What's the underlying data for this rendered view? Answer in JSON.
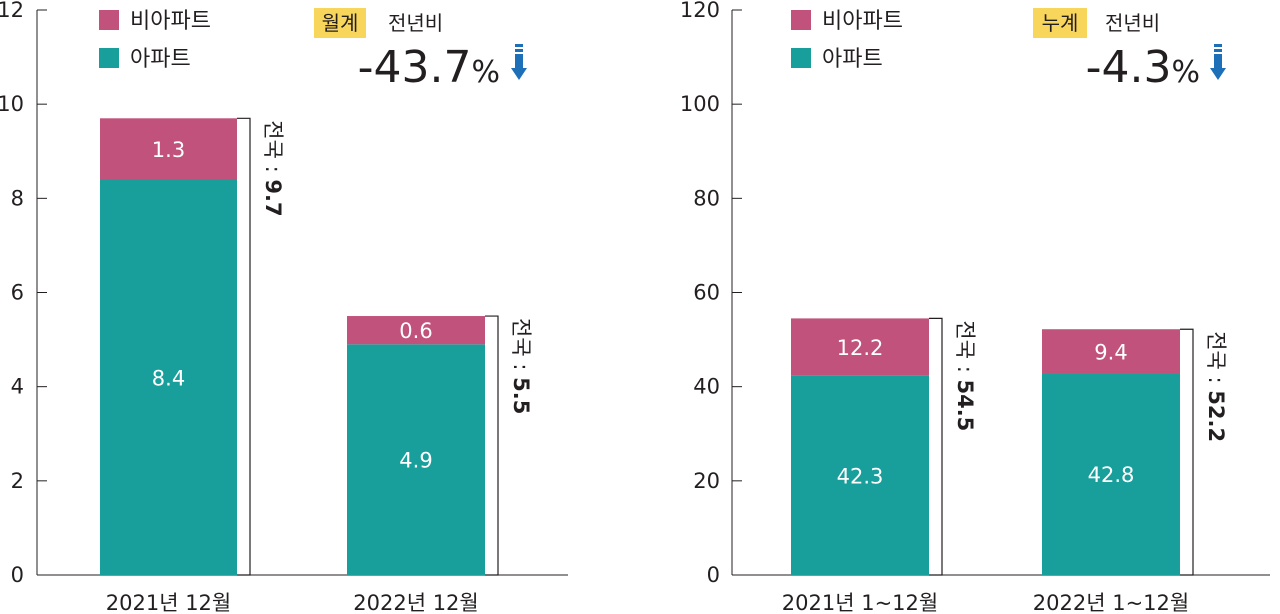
{
  "colors": {
    "apartment": "#189f9c",
    "non_apartment": "#c0527b",
    "badge_bg": "#f8d55b",
    "arrow": "#1d6fb8"
  },
  "icons": {
    "trend": "down-arrow-icon"
  },
  "chart_data": [
    {
      "type": "bar",
      "stacked": true,
      "categories": [
        "2021년 12월",
        "2022년 12월"
      ],
      "series": [
        {
          "name": "아파트",
          "values": [
            8.4,
            4.9
          ]
        },
        {
          "name": "비아파트",
          "values": [
            1.3,
            0.6
          ]
        }
      ],
      "totals": [
        9.7,
        5.5
      ],
      "total_prefix": "전국 : ",
      "ylim": [
        0,
        12
      ],
      "yticks": [
        "0",
        "2",
        "4",
        "6",
        "8",
        "10",
        "12"
      ],
      "legend": {
        "items": [
          "비아파트",
          "아파트"
        ],
        "position": "top-left"
      },
      "annotation": {
        "badge": "월계",
        "label": "전년비",
        "value": "-43.7",
        "unit": "%"
      }
    },
    {
      "type": "bar",
      "stacked": true,
      "categories": [
        "2021년 1~12월",
        "2022년 1~12월"
      ],
      "series": [
        {
          "name": "아파트",
          "values": [
            42.3,
            42.8
          ]
        },
        {
          "name": "비아파트",
          "values": [
            12.2,
            9.4
          ]
        }
      ],
      "totals": [
        54.5,
        52.2
      ],
      "total_prefix": "전국 : ",
      "ylim": [
        0,
        120
      ],
      "yticks": [
        "0",
        "20",
        "40",
        "60",
        "80",
        "100",
        "120"
      ],
      "legend": {
        "items": [
          "비아파트",
          "아파트"
        ],
        "position": "top-left"
      },
      "annotation": {
        "badge": "누계",
        "label": "전년비",
        "value": "-4.3",
        "unit": "%"
      }
    }
  ]
}
